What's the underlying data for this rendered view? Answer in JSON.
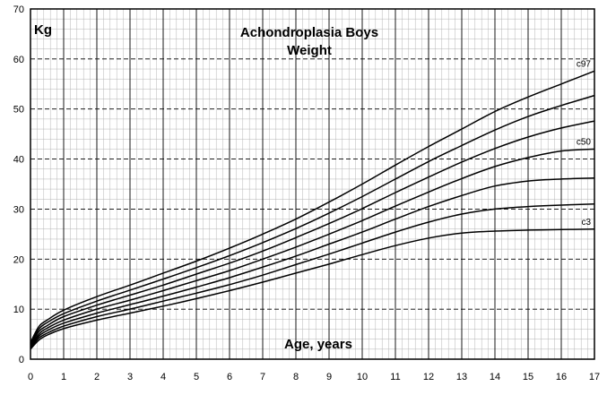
{
  "chart_data": {
    "type": "line",
    "title": "Achondroplasia Boys",
    "subtitle": "Weight",
    "ylabel": "Kg",
    "xlabel": "Age, years",
    "xlim": [
      0,
      17
    ],
    "ylim": [
      0,
      70
    ],
    "x_ticks": [
      "0",
      "1",
      "2",
      "3",
      "4",
      "5",
      "6",
      "7",
      "8",
      "9",
      "10",
      "11",
      "12",
      "13",
      "14",
      "15",
      "16",
      "17"
    ],
    "y_ticks": [
      "0",
      "10",
      "20",
      "30",
      "40",
      "50",
      "60",
      "70"
    ],
    "grid": true,
    "line_color": "#000000",
    "series": [
      {
        "name": "c97",
        "x": [
          0,
          0.25,
          0.5,
          1,
          2,
          3,
          4,
          5,
          6,
          7,
          8,
          9,
          10,
          11,
          12,
          13,
          14,
          15,
          16,
          17
        ],
        "y": [
          3.3,
          6.5,
          7.8,
          9.8,
          12.5,
          14.8,
          17.2,
          19.6,
          22.2,
          25.0,
          28.0,
          31.4,
          35.0,
          38.8,
          42.5,
          46.0,
          49.5,
          52.4,
          55.0,
          57.6
        ]
      },
      {
        "x": [
          0,
          0.25,
          0.5,
          1,
          2,
          3,
          4,
          5,
          6,
          7,
          8,
          9,
          10,
          11,
          12,
          13,
          14,
          15,
          16,
          17
        ],
        "y": [
          3.0,
          6.0,
          7.3,
          9.1,
          11.6,
          13.8,
          16.0,
          18.3,
          20.7,
          23.3,
          26.1,
          29.2,
          32.5,
          36.0,
          39.5,
          42.7,
          45.8,
          48.5,
          50.7,
          52.7
        ]
      },
      {
        "x": [
          0,
          0.25,
          0.5,
          1,
          2,
          3,
          4,
          5,
          6,
          7,
          8,
          9,
          10,
          11,
          12,
          13,
          14,
          15,
          16,
          17
        ],
        "y": [
          2.8,
          5.5,
          6.7,
          8.5,
          10.8,
          12.8,
          14.8,
          17.0,
          19.2,
          21.6,
          24.3,
          27.1,
          30.1,
          33.3,
          36.4,
          39.4,
          42.1,
          44.4,
          46.2,
          47.6
        ]
      },
      {
        "name": "c50",
        "x": [
          0,
          0.25,
          0.5,
          1,
          2,
          3,
          4,
          5,
          6,
          7,
          8,
          9,
          10,
          11,
          12,
          13,
          14,
          15,
          16,
          17
        ],
        "y": [
          2.6,
          5.0,
          6.2,
          7.8,
          10.0,
          11.8,
          13.7,
          15.7,
          17.7,
          20.0,
          22.4,
          25.0,
          27.7,
          30.6,
          33.4,
          36.1,
          38.5,
          40.3,
          41.6,
          42.0
        ]
      },
      {
        "x": [
          0,
          0.25,
          0.5,
          1,
          2,
          3,
          4,
          5,
          6,
          7,
          8,
          9,
          10,
          11,
          12,
          13,
          14,
          15,
          16,
          17
        ],
        "y": [
          2.4,
          4.6,
          5.7,
          7.2,
          9.2,
          10.9,
          12.6,
          14.4,
          16.3,
          18.4,
          20.6,
          23.0,
          25.4,
          28.0,
          30.5,
          32.7,
          34.6,
          35.6,
          36.0,
          36.2
        ]
      },
      {
        "x": [
          0,
          0.25,
          0.5,
          1,
          2,
          3,
          4,
          5,
          6,
          7,
          8,
          9,
          10,
          11,
          12,
          13,
          14,
          15,
          16,
          17
        ],
        "y": [
          2.2,
          4.2,
          5.2,
          6.6,
          8.5,
          10.0,
          11.6,
          13.2,
          14.9,
          16.8,
          18.9,
          21.0,
          23.2,
          25.4,
          27.4,
          29.0,
          30.0,
          30.5,
          30.8,
          31.0
        ]
      },
      {
        "name": "c3",
        "x": [
          0,
          0.25,
          0.5,
          1,
          2,
          3,
          4,
          5,
          6,
          7,
          8,
          9,
          10,
          11,
          12,
          13,
          14,
          15,
          16,
          17
        ],
        "y": [
          2.0,
          3.8,
          4.8,
          6.1,
          7.8,
          9.2,
          10.6,
          12.1,
          13.7,
          15.4,
          17.2,
          19.0,
          20.9,
          22.7,
          24.2,
          25.2,
          25.6,
          25.8,
          25.9,
          26.0
        ]
      }
    ]
  }
}
